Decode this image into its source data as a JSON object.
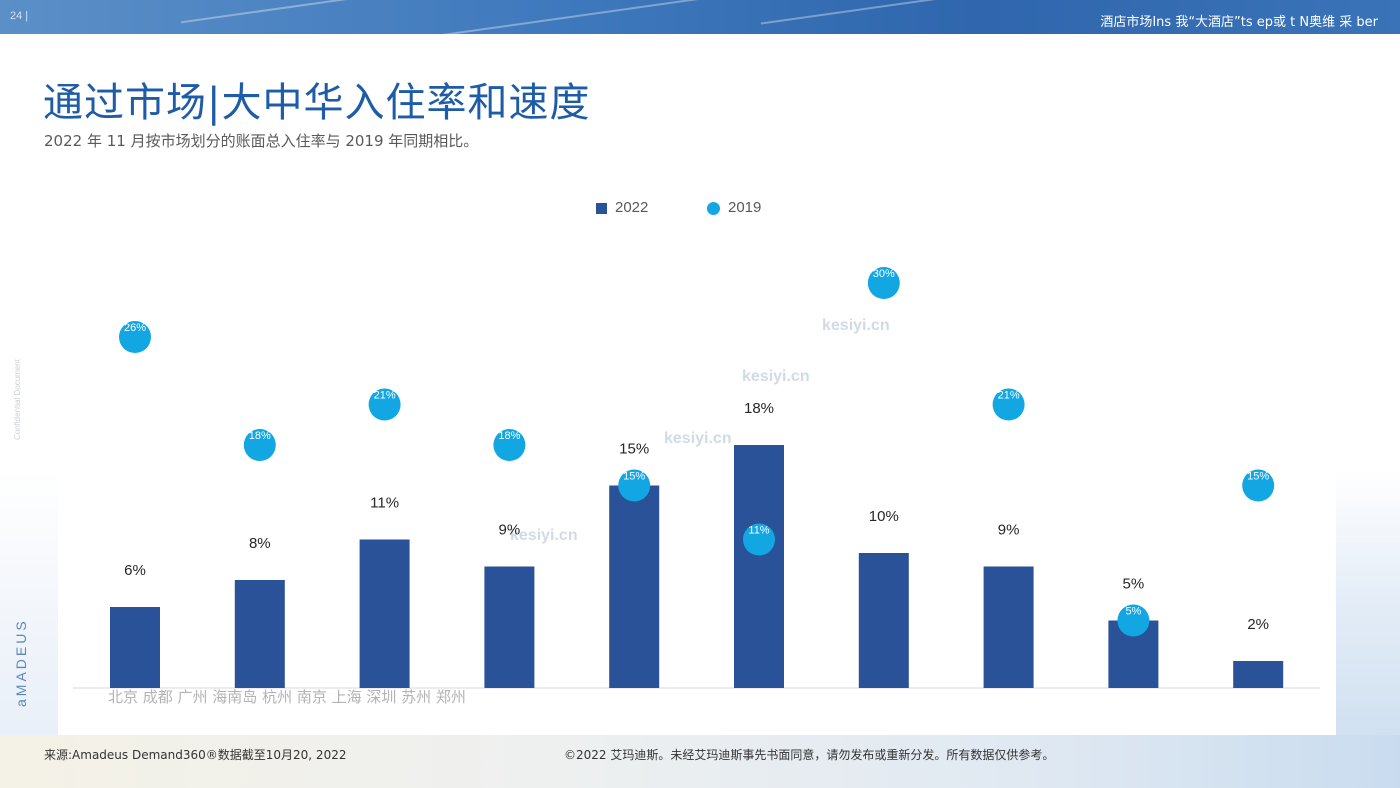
{
  "header": {
    "page_number": "24 |",
    "top_right_title": "酒店市场Ins 我“大酒店”ts ep或 t N奥维 采 ber",
    "main_title": "通过市场|大中华入住率和速度",
    "subtitle": "2022 年 11 月按市场划分的账面总入住率与 2019 年同期相比。"
  },
  "side_labels": {
    "confidential": "Confidential Document",
    "brand": "aMADEUS"
  },
  "watermark": {
    "text": "kesiyi.cn"
  },
  "footer": {
    "source": "来源:Amadeus Demand360®数据截至10月20, 2022",
    "copyright": "©2022 艾玛迪斯。未经艾玛迪斯事先书面同意，请勿发布或重新分发。所有数据仅供参考。"
  },
  "colors": {
    "bar": "#2a5298",
    "dot": "#12a6e3",
    "title": "#1f5ca8"
  },
  "chart_data": {
    "type": "bar",
    "x_axis_text": "北京 成都 广州 海南岛 杭州 南京 上海 深圳 苏州 郑州",
    "categories": [
      "北京",
      "成都",
      "广州",
      "海南岛",
      "杭州",
      "南京",
      "上海",
      "深圳",
      "苏州",
      "郑州"
    ],
    "series": [
      {
        "name": "2022",
        "type": "bar",
        "values": [
          6,
          8,
          11,
          9,
          15,
          18,
          10,
          9,
          5,
          2
        ],
        "labels": [
          "6%",
          "8%",
          "11%",
          "9%",
          "15%",
          "18%",
          "10%",
          "9%",
          "5%",
          "2%"
        ]
      },
      {
        "name": "2019",
        "type": "scatter",
        "values": [
          26,
          18,
          21,
          18,
          15,
          11,
          30,
          21,
          5,
          15
        ],
        "labels": [
          "26%",
          "18%",
          "21%",
          "18%",
          "15%",
          "11%",
          "30%",
          "21%",
          "5%",
          "15%"
        ]
      }
    ],
    "ylim": [
      0,
      33
    ],
    "legend": "top-center",
    "grid": false
  }
}
